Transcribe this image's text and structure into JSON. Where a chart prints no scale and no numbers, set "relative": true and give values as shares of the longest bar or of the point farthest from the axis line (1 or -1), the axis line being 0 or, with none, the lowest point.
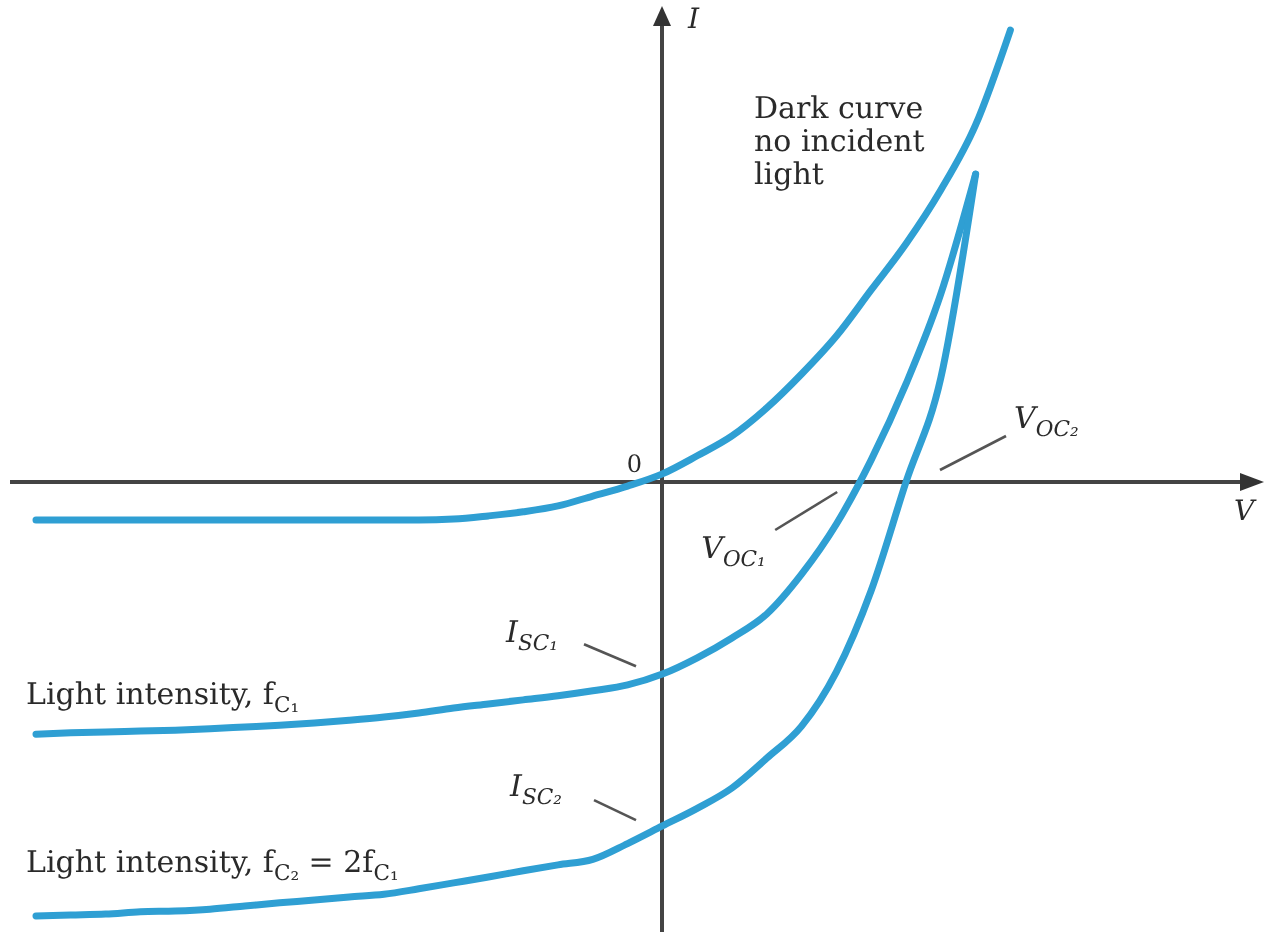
{
  "chart_data": {
    "type": "line",
    "relative": true,
    "xlabel": "V",
    "ylabel": "I",
    "categories": [
      null,
      null,
      null,
      null,
      null,
      null,
      null,
      null,
      null,
      null,
      null,
      null,
      null,
      null,
      null,
      null,
      null,
      null,
      null,
      null,
      null,
      null,
      null,
      null,
      null,
      null,
      null,
      null,
      null,
      null,
      null,
      null,
      null,
      null,
      null,
      null
    ],
    "series": [
      {
        "name": "Dark curve no incident light",
        "color": "#2f9fd3",
        "values": [
          -0.084,
          -0.084,
          -0.084,
          -0.084,
          -0.084,
          -0.084,
          -0.084,
          -0.084,
          -0.084,
          -0.084,
          -0.084,
          -0.084,
          -0.082,
          -0.075,
          -0.066,
          -0.053,
          -0.031,
          -0.009,
          0.018,
          0.058,
          0.102,
          0.164,
          0.239,
          0.323,
          0.425,
          0.527,
          0.646,
          0.79,
          1,
          null,
          null,
          null,
          null,
          null,
          null,
          null
        ]
      },
      {
        "name": "Light intensity, f$_{C₁}$",
        "color": "#2f9fd3",
        "values": [
          -0.558,
          -0.555,
          -0.553,
          -0.551,
          -0.549,
          -0.546,
          -0.542,
          -0.538,
          -0.533,
          -0.527,
          -0.52,
          -0.511,
          -0.5,
          -0.491,
          -0.482,
          -0.473,
          -0.462,
          -0.449,
          -0.425,
          -0.389,
          -0.345,
          -0.292,
          -0.204,
          -0.093,
          0.049,
          0.217,
          0.416,
          0.681,
          null,
          null,
          null,
          null,
          null,
          null,
          null,
          null
        ]
      },
      {
        "name": "Light intensity, f$_{C₂}$ = 2f$_{C₁}$",
        "color": "#2f9fd3",
        "values": [
          -0.96,
          -0.958,
          -0.956,
          -0.951,
          -0.949,
          -0.945,
          -0.938,
          -0.931,
          -0.925,
          -0.918,
          -0.912,
          -0.9,
          -0.887,
          -0.874,
          -0.86,
          -0.847,
          -0.835,
          -0.8,
          -0.761,
          -0.722,
          -0.677,
          -0.611,
          -0.54,
          -0.42,
          -0.24,
          0,
          0.23,
          0.681,
          null,
          null,
          null,
          null,
          null,
          null,
          null,
          null
        ]
      }
    ],
    "annotations": [
      {
        "text": "0",
        "y": 0
      },
      "I$_{SC₁}$",
      "I$_{SC₂}$",
      "V$_{OC₁}$",
      "V$_{OC₂}$"
    ]
  }
}
